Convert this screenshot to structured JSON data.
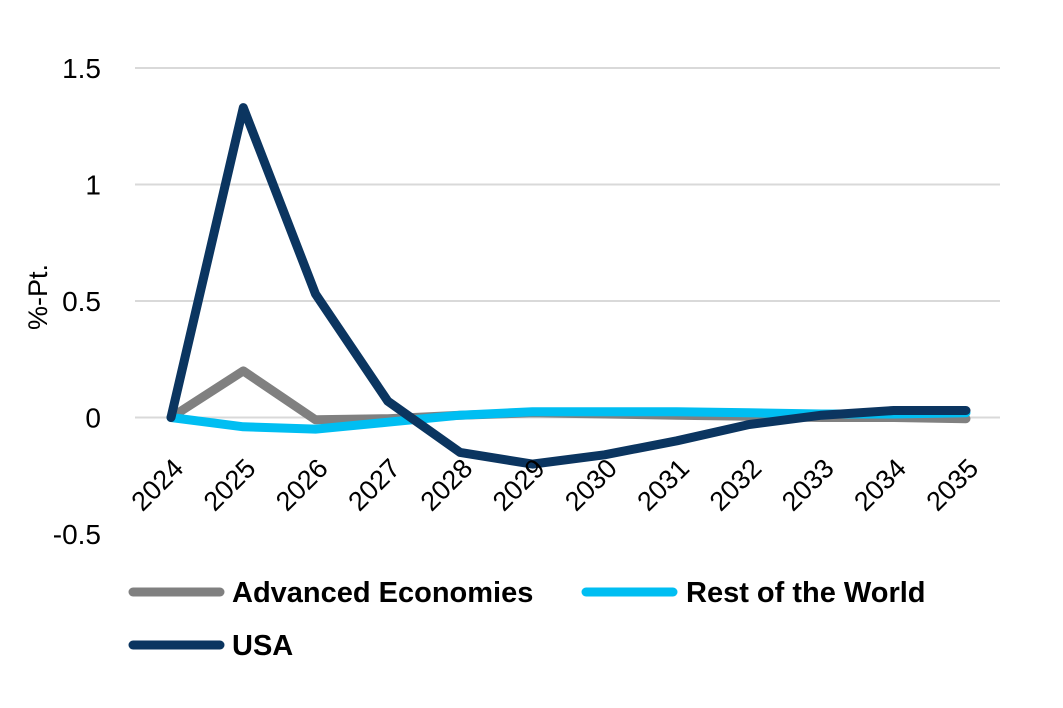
{
  "chart_data": {
    "type": "line",
    "ylabel": "%-Pt.",
    "xlabel": "",
    "ylim": [
      -0.5,
      1.5
    ],
    "y_ticks": [
      "1.5",
      "1",
      "0.5",
      "0",
      "-0.5"
    ],
    "y_tick_values": [
      1.5,
      1,
      0.5,
      0,
      -0.5
    ],
    "categories": [
      "2024",
      "2025",
      "2026",
      "2027",
      "2028",
      "2029",
      "2030",
      "2031",
      "2032",
      "2033",
      "2034",
      "2035"
    ],
    "grid": true,
    "legend_position": "bottom",
    "series": [
      {
        "name": "Advanced Economies",
        "color": "#808080",
        "values": [
          0,
          0.2,
          -0.01,
          -0.005,
          0.01,
          0.02,
          0.015,
          0.01,
          0.005,
          0.0,
          0.0,
          -0.005
        ]
      },
      {
        "name": "Rest of the World",
        "color": "#00bef2",
        "values": [
          0,
          -0.04,
          -0.05,
          -0.02,
          0.01,
          0.025,
          0.025,
          0.025,
          0.02,
          0.015,
          0.015,
          0.02
        ]
      },
      {
        "name": "USA",
        "color": "#0b3560",
        "values": [
          0,
          1.33,
          0.53,
          0.07,
          -0.15,
          -0.2,
          -0.16,
          -0.1,
          -0.03,
          0.01,
          0.03,
          0.03
        ]
      }
    ]
  }
}
